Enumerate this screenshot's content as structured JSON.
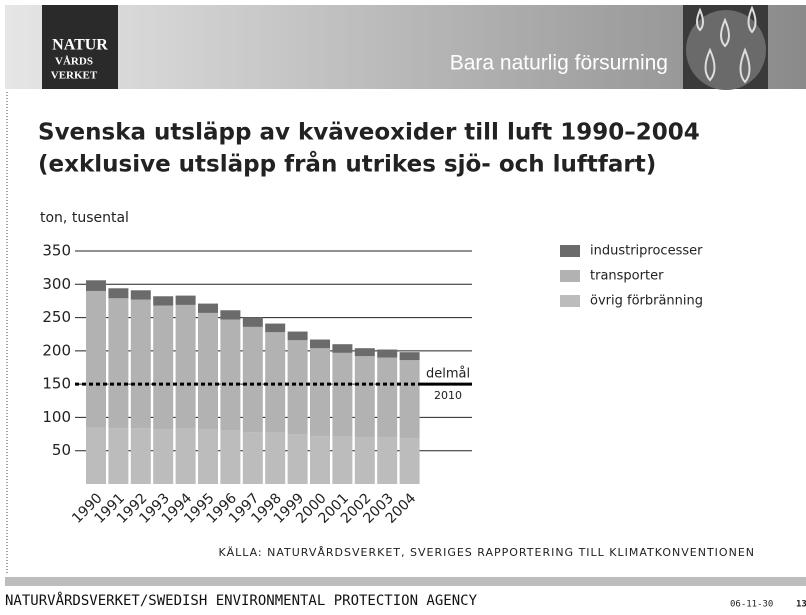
{
  "header": {
    "logo": [
      "NATUR",
      "VÅRDS",
      "VERKET"
    ],
    "title": "Bara naturlig försurning"
  },
  "chart_data": {
    "type": "stacked-bar",
    "title": [
      "Svenska utsläpp av kväveoxider till luft 1990–2004",
      "(exklusive utsläpp från utrikes sjö- och luftfart)"
    ],
    "y_label": "ton, tusental",
    "categories": [
      "1990",
      "1991",
      "1992",
      "1993",
      "1994",
      "1995",
      "1996",
      "1997",
      "1998",
      "1999",
      "2000",
      "2001",
      "2002",
      "2003",
      "2004"
    ],
    "series": [
      {
        "name": "industriprocesser",
        "color": "#6b6b6b",
        "values": [
          16,
          15,
          14,
          14,
          14,
          14,
          14,
          14,
          13,
          13,
          13,
          13,
          12,
          12,
          12
        ]
      },
      {
        "name": "transporter",
        "color": "#b2b2b2",
        "values": [
          205,
          195,
          193,
          186,
          186,
          175,
          167,
          158,
          151,
          141,
          132,
          126,
          122,
          120,
          117
        ]
      },
      {
        "name": "övrig förbränning",
        "color": "#bcbcbc",
        "values": [
          85,
          84,
          84,
          82,
          83,
          82,
          80,
          78,
          77,
          75,
          72,
          71,
          70,
          70,
          69
        ]
      }
    ],
    "ylim": [
      0,
      350
    ],
    "yticks": [
      50,
      100,
      150,
      200,
      250,
      300,
      350
    ],
    "grid": true,
    "target": {
      "value": 150,
      "label": "delmål",
      "year": "2010"
    },
    "source": "KÄLLA: NATURVÅRDSVERKET, SVERIGES RAPPORTERING TILL KLIMATKONVENTIONEN"
  },
  "footer": {
    "agency": "NATURVÅRDSVERKET/SWEDISH ENVIRONMENTAL PROTECTION AGENCY",
    "date": "06-11-30",
    "page": "13"
  }
}
